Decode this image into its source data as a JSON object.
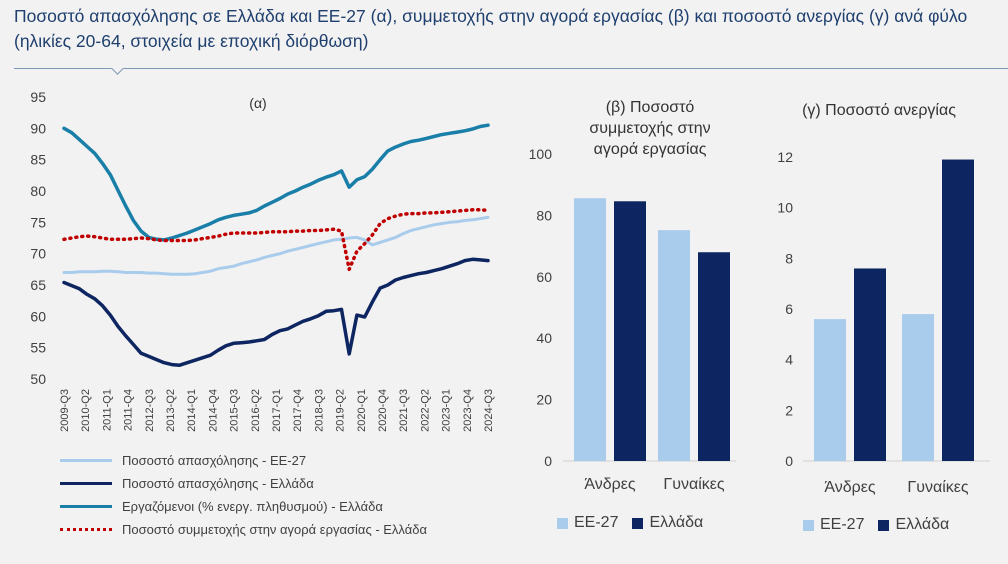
{
  "title": "Ποσοστό απασχόλησης σε Ελλάδα και ΕΕ-27 (α), συμμετοχής στην αγορά εργασίας (β) και ποσοστό ανεργίας (γ) ανά φύλο (ηλικίες 20-64, στοιχεία με εποχική διόρθωση)",
  "colors": {
    "eu": "#a9cbec",
    "greece": "#0d2560",
    "employed": "#1a7fa8",
    "participation": "#c00000",
    "title": "#1f3f6e"
  },
  "chart_data": [
    {
      "type": "line",
      "title": "(α)",
      "ylim": [
        50,
        95
      ],
      "yticks": [
        50,
        55,
        60,
        65,
        70,
        75,
        80,
        85,
        90,
        95
      ],
      "grid": false,
      "legend_position": "bottom",
      "x_tick_labels": [
        "2009-Q3",
        "2010-Q2",
        "2011-Q1",
        "2011-Q4",
        "2012-Q3",
        "2013-Q2",
        "2014-Q1",
        "2014-Q4",
        "2015-Q3",
        "2016-Q2",
        "2017-Q1",
        "2017-Q4",
        "2018-Q3",
        "2019-Q2",
        "2020-Q1",
        "2020-Q4",
        "2021-Q3",
        "2022-Q2",
        "2023-Q1",
        "2023-Q4",
        "2024-Q3"
      ],
      "series": [
        {
          "name": "Ποσοστό απασχόλησης - ΕΕ-27",
          "style": "solid-light",
          "values": [
            67.0,
            67.0,
            67.1,
            67.1,
            67.1,
            67.2,
            67.2,
            67.1,
            67.0,
            67.0,
            67.0,
            66.9,
            66.9,
            66.8,
            66.7,
            66.7,
            66.7,
            66.8,
            67.0,
            67.2,
            67.6,
            67.8,
            68.0,
            68.4,
            68.7,
            69.0,
            69.4,
            69.7,
            70.0,
            70.4,
            70.7,
            71.0,
            71.3,
            71.6,
            71.9,
            72.2,
            72.3,
            72.5,
            72.6,
            72.2,
            71.4,
            71.8,
            72.2,
            72.6,
            73.2,
            73.7,
            74.0,
            74.3,
            74.6,
            74.8,
            75.0,
            75.1,
            75.3,
            75.4,
            75.6,
            75.8
          ]
        },
        {
          "name": "Ποσοστό απασχόλησης - Ελλάδα",
          "style": "solid-dark",
          "values": [
            65.4,
            64.9,
            64.4,
            63.5,
            62.8,
            61.7,
            60.2,
            58.4,
            56.9,
            55.5,
            54.1,
            53.6,
            53.1,
            52.6,
            52.3,
            52.2,
            52.6,
            53.0,
            53.4,
            53.8,
            54.6,
            55.3,
            55.7,
            55.8,
            55.9,
            56.1,
            56.3,
            57.1,
            57.7,
            58.0,
            58.6,
            59.2,
            59.6,
            60.1,
            60.8,
            60.9,
            61.1,
            54.0,
            60.2,
            59.9,
            62.3,
            64.5,
            65.0,
            65.8,
            66.2,
            66.5,
            66.8,
            67.0,
            67.3,
            67.6,
            68.0,
            68.4,
            68.9,
            69.1,
            69.0,
            68.9
          ]
        },
        {
          "name": "Εργαζόμενοι (% ενεργ. πληθυσμού) - Ελλάδα",
          "style": "solid-teal",
          "values": [
            90.0,
            89.3,
            88.2,
            87.1,
            86.0,
            84.4,
            82.6,
            80.1,
            77.6,
            75.3,
            73.6,
            72.6,
            72.3,
            72.2,
            72.5,
            72.9,
            73.3,
            73.8,
            74.3,
            74.8,
            75.4,
            75.8,
            76.1,
            76.3,
            76.5,
            76.9,
            77.6,
            78.2,
            78.8,
            79.5,
            80.0,
            80.6,
            81.1,
            81.7,
            82.2,
            82.6,
            83.2,
            80.6,
            81.8,
            82.3,
            83.5,
            85.0,
            86.4,
            87.0,
            87.5,
            87.9,
            88.1,
            88.4,
            88.7,
            89.0,
            89.2,
            89.4,
            89.6,
            89.9,
            90.3,
            90.5
          ]
        },
        {
          "name": "Ποσοστό συμμετοχής στην αγορά εργασίας - Ελλάδα",
          "style": "dotted-red",
          "values": [
            72.3,
            72.5,
            72.7,
            72.8,
            72.7,
            72.5,
            72.3,
            72.3,
            72.3,
            72.4,
            72.5,
            72.4,
            72.2,
            72.1,
            72.1,
            72.1,
            72.1,
            72.2,
            72.4,
            72.6,
            72.8,
            73.1,
            73.3,
            73.3,
            73.3,
            73.3,
            73.4,
            73.5,
            73.5,
            73.5,
            73.6,
            73.6,
            73.7,
            73.7,
            73.8,
            73.9,
            73.6,
            67.5,
            70.4,
            71.6,
            73.0,
            74.8,
            75.6,
            76.0,
            76.3,
            76.4,
            76.4,
            76.5,
            76.5,
            76.6,
            76.7,
            76.8,
            76.9,
            77.0,
            77.0,
            76.9
          ]
        }
      ]
    },
    {
      "type": "bar",
      "title": "(β) Ποσοστό συμμετοχής στην αγορά εργασίας",
      "categories": [
        "Άνδρες",
        "Γυναίκες"
      ],
      "ylim": [
        0,
        100
      ],
      "yticks": [
        0,
        20,
        40,
        60,
        80,
        100
      ],
      "legend_position": "bottom",
      "series": [
        {
          "name": "ΕΕ-27",
          "values": [
            85.6,
            75.2
          ]
        },
        {
          "name": "Ελλάδα",
          "values": [
            84.6,
            68.0
          ]
        }
      ]
    },
    {
      "type": "bar",
      "title": "(γ) Ποσοστό ανεργίας",
      "categories": [
        "Άνδρες",
        "Γυναίκες"
      ],
      "ylim": [
        0,
        12
      ],
      "yticks": [
        0,
        2,
        4,
        6,
        8,
        10,
        12
      ],
      "legend_position": "bottom",
      "series": [
        {
          "name": "ΕΕ-27",
          "values": [
            5.6,
            5.8
          ]
        },
        {
          "name": "Ελλάδα",
          "values": [
            7.6,
            11.9
          ]
        }
      ]
    }
  ]
}
